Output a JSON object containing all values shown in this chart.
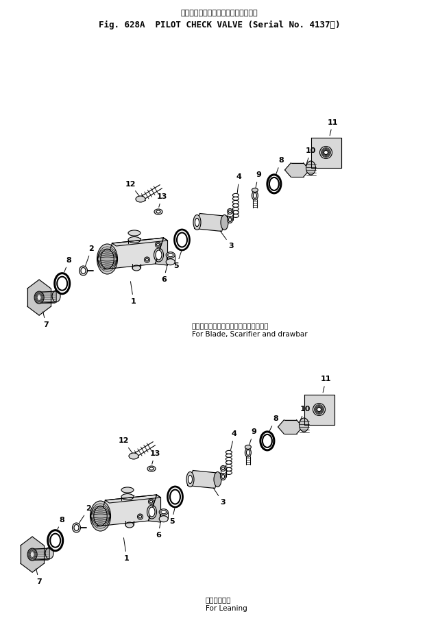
{
  "title_line1": "バイロットチェックバルブ（適用号機",
  "title_line2": "Fig. 628A  PILOT CHECK VALVE (Serial No. 4137～)",
  "caption1_jp": "ブレード、スカリファイヤ、ドローバ用",
  "caption1_en": "For Blade, Scarifier and drawbar",
  "caption2_jp": "リーニング用",
  "caption2_en": "For Leaning",
  "bg_color": "#ffffff"
}
